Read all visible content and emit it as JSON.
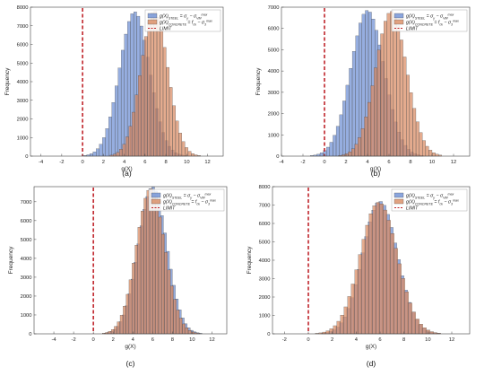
{
  "chart_data": [
    {
      "type": "bar",
      "subplot_label": "(a)",
      "xlabel": "g(X)",
      "ylabel": "Frequency",
      "xlim": [
        -5,
        13.5
      ],
      "ylim": [
        0,
        8000
      ],
      "xticks": [
        -4,
        -2,
        0,
        2,
        4,
        6,
        8,
        10,
        12
      ],
      "yticks": [
        0,
        1000,
        2000,
        3000,
        4000,
        5000,
        6000,
        7000,
        8000
      ],
      "legend_position": "top-right",
      "limit_x": 0,
      "series": [
        {
          "name": "g(X)_STEEL = σ_y − σ_VM^max",
          "color": "#6d8fd4",
          "mean": 5.0,
          "peak": 7750,
          "sd": 1.45
        },
        {
          "name": "g(X)_CONCRETE = f_ck − σ_3^max",
          "color": "#d98b62",
          "mean": 6.9,
          "peak": 7800,
          "sd": 1.3
        },
        {
          "name": "LIMIT",
          "color": "#c0242b",
          "line": "dashed"
        }
      ]
    },
    {
      "type": "bar",
      "subplot_label": "(b)",
      "xlabel": "g(X)",
      "ylabel": "Frequency",
      "xlim": [
        -4,
        13.5
      ],
      "ylim": [
        0,
        7000
      ],
      "xticks": [
        -4,
        -2,
        0,
        2,
        4,
        6,
        8,
        10,
        12
      ],
      "yticks": [
        0,
        1000,
        2000,
        3000,
        4000,
        5000,
        6000,
        7000
      ],
      "legend_position": "top-right",
      "limit_x": 0,
      "series": [
        {
          "name": "g(X)_STEEL = σ_y − σ_VM^max",
          "color": "#6d8fd4",
          "mean": 4.0,
          "peak": 6850,
          "sd": 1.55
        },
        {
          "name": "g(X)_CONCRETE = f_ck − σ_3^max",
          "color": "#d98b62",
          "mean": 6.2,
          "peak": 6800,
          "sd": 1.45
        },
        {
          "name": "LIMIT",
          "color": "#c0242b",
          "line": "dashed"
        }
      ]
    },
    {
      "type": "bar",
      "subplot_label": "(c)",
      "xlabel": "g(X)",
      "ylabel": "Frequency",
      "xlim": [
        -6,
        13.5
      ],
      "ylim": [
        0,
        7800
      ],
      "xticks": [
        -4,
        -2,
        0,
        2,
        4,
        6,
        8,
        10,
        12
      ],
      "yticks": [
        0,
        1000,
        2000,
        3000,
        4000,
        5000,
        6000,
        7000
      ],
      "legend_position": "top-right",
      "limit_x": 0,
      "series": [
        {
          "name": "g(X)_STEEL = σ_y − σ_VM^max",
          "color": "#6d8fd4",
          "mean": 6.0,
          "peak": 7800,
          "sd": 1.45
        },
        {
          "name": "g(X)_CONCRETE = f_ck − σ_3^max",
          "color": "#d98b62",
          "mean": 5.8,
          "peak": 7700,
          "sd": 1.45
        },
        {
          "name": "LIMIT",
          "color": "#c0242b",
          "line": "dashed"
        }
      ]
    },
    {
      "type": "bar",
      "subplot_label": "(d)",
      "xlabel": "g(X)",
      "ylabel": "Frequency",
      "xlim": [
        -3,
        13.5
      ],
      "ylim": [
        0,
        8000
      ],
      "xticks": [
        -2,
        0,
        2,
        4,
        6,
        8,
        10,
        12
      ],
      "yticks": [
        0,
        1000,
        2000,
        3000,
        4000,
        5000,
        6000,
        7000,
        8000
      ],
      "legend_position": "top-right",
      "limit_x": 0,
      "series": [
        {
          "name": "g(X)_STEEL = σ_y − σ_VM^max",
          "color": "#6d8fd4",
          "mean": 6.0,
          "peak": 7200,
          "sd": 1.45
        },
        {
          "name": "g(X)_CONCRETE = f_ck − σ_3^max",
          "color": "#d98b62",
          "mean": 5.9,
          "peak": 7150,
          "sd": 1.55
        },
        {
          "name": "LIMIT",
          "color": "#c0242b",
          "line": "dashed"
        }
      ]
    }
  ]
}
